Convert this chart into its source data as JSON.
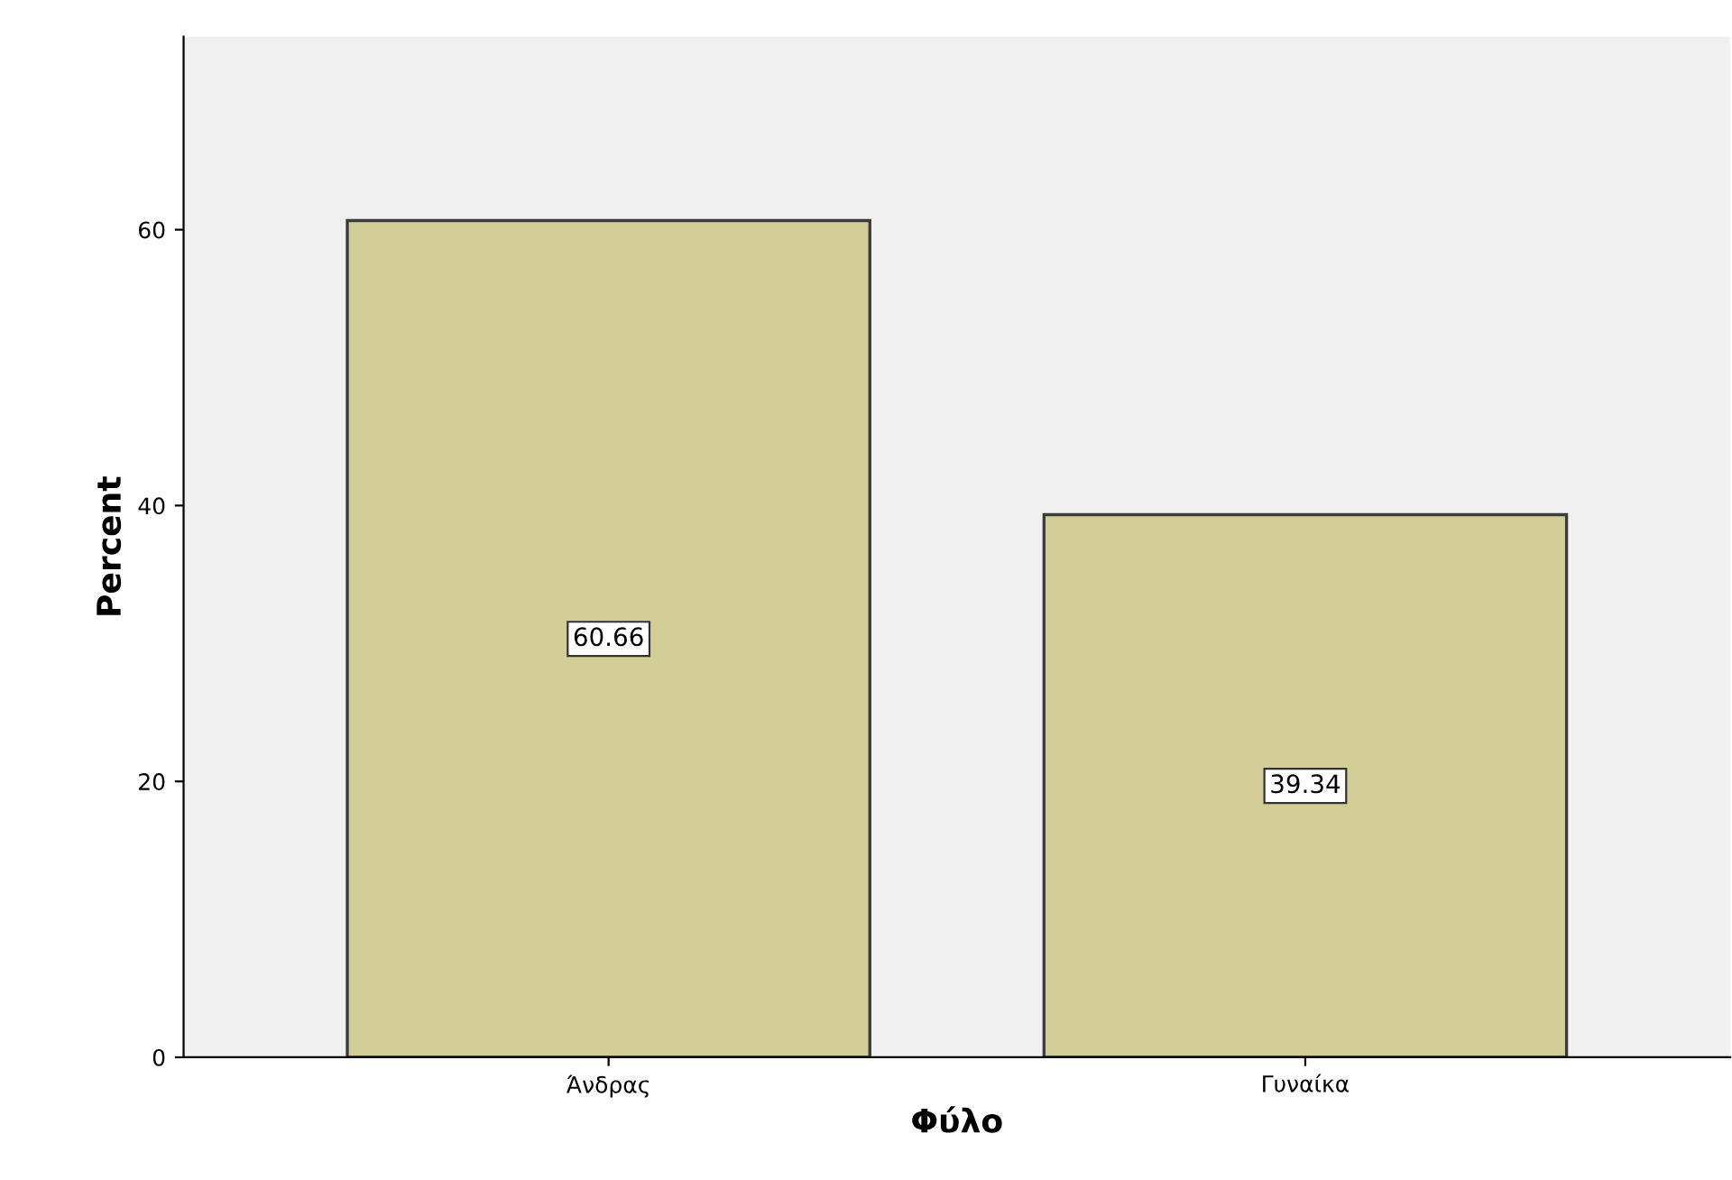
{
  "chart_data": {
    "type": "bar",
    "xlabel": "Φύλο",
    "ylabel": "Percent",
    "categories": [
      "Άνδρας",
      "Γυναίκα"
    ],
    "values": [
      60.66,
      39.34
    ],
    "color": "#d3ce97",
    "ylim": [
      0,
      74
    ],
    "yticks": [
      0,
      20,
      40,
      60
    ],
    "data_labels": true,
    "grid": false
  }
}
